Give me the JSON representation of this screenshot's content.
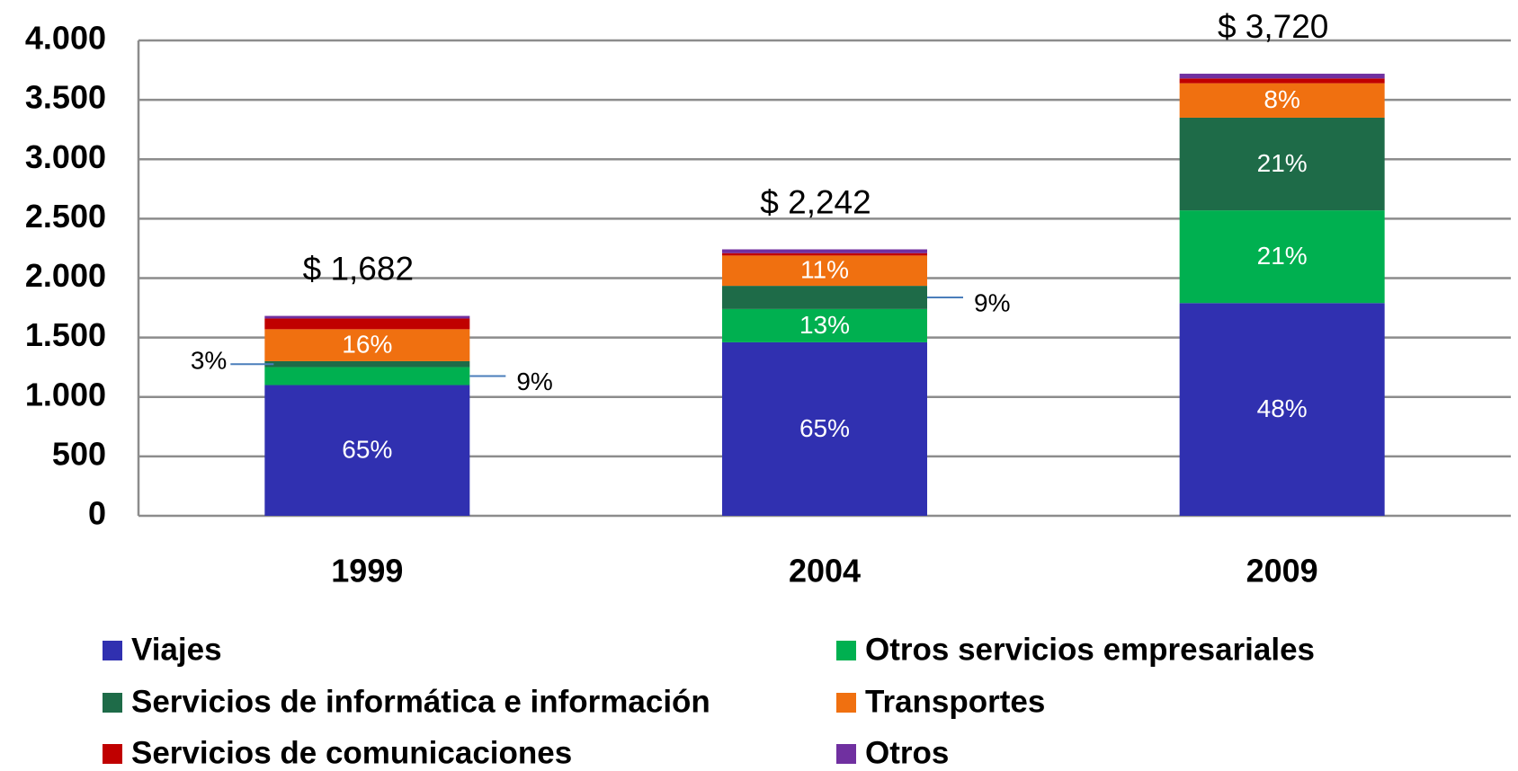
{
  "chart_data": {
    "type": "stacked_bar",
    "categories": [
      "1999",
      "2004",
      "2009"
    ],
    "series": [
      {
        "name": "Viajes",
        "color": "#3030b0",
        "values": [
          1100,
          1460,
          1790
        ],
        "percent_labels": [
          "65%",
          "65%",
          "48%"
        ]
      },
      {
        "name": "Otros servicios empresariales",
        "color": "#00b050",
        "values": [
          151,
          280,
          780
        ],
        "percent_labels": [
          "9%",
          "13%",
          "21%"
        ]
      },
      {
        "name": "Servicios de informática e información",
        "color": "#1e6b48",
        "values": [
          50,
          195,
          780
        ],
        "percent_labels": [
          "3%",
          "9%",
          "21%"
        ]
      },
      {
        "name": "Transportes",
        "color": "#f07010",
        "values": [
          269,
          255,
          290
        ],
        "percent_labels": [
          "16%",
          "11%",
          "8%"
        ]
      },
      {
        "name": "Servicios de comunicaciones",
        "color": "#c00000",
        "values": [
          90,
          20,
          40
        ],
        "percent_labels": [
          null,
          null,
          null
        ]
      },
      {
        "name": "Otros",
        "color": "#7030a0",
        "values": [
          22,
          32,
          40
        ],
        "percent_labels": [
          null,
          null,
          null
        ]
      }
    ],
    "total_labels": [
      "$ 1,682",
      "$ 2,242",
      "$ 3,720"
    ],
    "ylim": [
      0,
      4000
    ],
    "yticks": [
      0,
      500,
      {
        "value": 1000,
        "label": "1.000"
      },
      {
        "value": 1500,
        "label": "1.500"
      },
      {
        "value": 2000,
        "label": "2.000"
      },
      {
        "value": 2500,
        "label": "2.500"
      },
      {
        "value": 3000,
        "label": "3.000"
      },
      {
        "value": 3500,
        "label": "3.500"
      },
      {
        "value": 4000,
        "label": "4.000"
      }
    ],
    "grid": true
  }
}
